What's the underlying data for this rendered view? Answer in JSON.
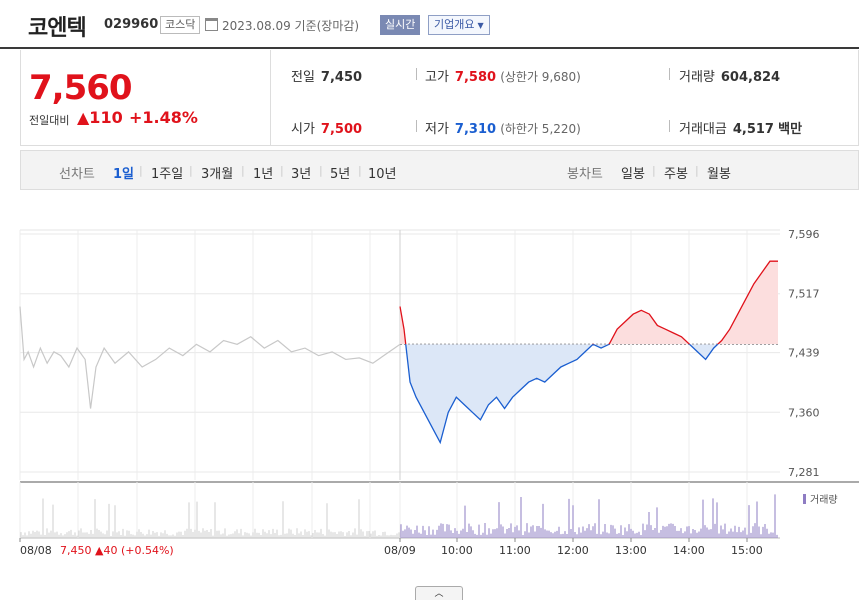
{
  "header": {
    "name": "코엔텍",
    "code": "029960",
    "market": "코스닥",
    "date": "2023.08.09",
    "basis": "기준(장마감)",
    "realtime": "실시간",
    "company_overview": "기업개요"
  },
  "price": {
    "current": "7,560",
    "change_label": "전일대비",
    "change_value": "▲110",
    "change_pct": "+1.48%"
  },
  "stats": {
    "prev_close_label": "전일",
    "prev_close": "7,450",
    "high_label": "고가",
    "high": "7,580",
    "upper_limit": "(상한가 9,680)",
    "volume_label": "거래량",
    "volume": "604,824",
    "open_label": "시가",
    "open": "7,500",
    "low_label": "저가",
    "low": "7,310",
    "lower_limit": "(하한가 5,220)",
    "amount_label": "거래대금",
    "amount": "4,517",
    "amount_unit": "백만"
  },
  "nav": {
    "line_label": "선차트",
    "periods": [
      "1일",
      "1주일",
      "3개월",
      "1년",
      "3년",
      "5년",
      "10년"
    ],
    "active_period": "1일",
    "candle_label": "봉차트",
    "candles": [
      "일봉",
      "주봉",
      "월봉"
    ]
  },
  "colors": {
    "up": "#e0121b",
    "down": "#1a5ed0",
    "prev_day": "#c8c8c8",
    "volume": "#8e7cc3"
  },
  "chart_data": {
    "type": "line",
    "y_ticks": [
      "7,596",
      "7,517",
      "7,439",
      "7,360",
      "7,281"
    ],
    "ylim": [
      7281,
      7596
    ],
    "baseline": 7450,
    "x_ticks": [
      "08/08",
      "08/09",
      "10:00",
      "11:00",
      "12:00",
      "13:00",
      "14:00",
      "15:00"
    ],
    "prev_day_info": "7,450 ▲40 (+0.54%)",
    "volume_legend": "거래량",
    "prev_day_series": [
      [
        0,
        7500
      ],
      [
        0.3,
        7430
      ],
      [
        0.6,
        7440
      ],
      [
        1,
        7420
      ],
      [
        1.5,
        7445
      ],
      [
        2,
        7425
      ],
      [
        2.5,
        7440
      ],
      [
        3,
        7435
      ],
      [
        3.6,
        7420
      ],
      [
        4.2,
        7445
      ],
      [
        4.8,
        7430
      ],
      [
        5.2,
        7365
      ],
      [
        5.6,
        7420
      ],
      [
        6.2,
        7445
      ],
      [
        7,
        7425
      ],
      [
        8,
        7440
      ],
      [
        9,
        7420
      ],
      [
        10,
        7430
      ],
      [
        11,
        7445
      ],
      [
        12,
        7435
      ],
      [
        13,
        7450
      ],
      [
        14,
        7440
      ],
      [
        15,
        7455
      ],
      [
        16,
        7450
      ],
      [
        17,
        7460
      ],
      [
        18,
        7445
      ],
      [
        19,
        7455
      ],
      [
        20,
        7440
      ],
      [
        21,
        7445
      ],
      [
        22,
        7435
      ],
      [
        23,
        7440
      ],
      [
        24,
        7430
      ],
      [
        25,
        7432
      ],
      [
        26,
        7425
      ],
      [
        26.8,
        7435
      ],
      [
        27.6,
        7445
      ],
      [
        28,
        7450
      ]
    ],
    "today_series": [
      [
        0,
        7500
      ],
      [
        0.2,
        7470
      ],
      [
        0.5,
        7400
      ],
      [
        0.8,
        7380
      ],
      [
        1.2,
        7360
      ],
      [
        1.6,
        7340
      ],
      [
        2.0,
        7320
      ],
      [
        2.4,
        7360
      ],
      [
        2.8,
        7380
      ],
      [
        3.2,
        7370
      ],
      [
        3.6,
        7360
      ],
      [
        4.0,
        7350
      ],
      [
        4.4,
        7370
      ],
      [
        4.8,
        7380
      ],
      [
        5.2,
        7365
      ],
      [
        5.6,
        7380
      ],
      [
        6.0,
        7390
      ],
      [
        6.4,
        7400
      ],
      [
        6.8,
        7405
      ],
      [
        7.2,
        7400
      ],
      [
        7.6,
        7410
      ],
      [
        8.0,
        7420
      ],
      [
        8.4,
        7425
      ],
      [
        8.8,
        7430
      ],
      [
        9.2,
        7440
      ],
      [
        9.6,
        7450
      ],
      [
        10.0,
        7445
      ],
      [
        10.4,
        7450
      ],
      [
        10.8,
        7470
      ],
      [
        11.2,
        7480
      ],
      [
        11.6,
        7490
      ],
      [
        12.0,
        7495
      ],
      [
        12.4,
        7490
      ],
      [
        12.8,
        7475
      ],
      [
        13.2,
        7470
      ],
      [
        13.6,
        7465
      ],
      [
        14.0,
        7460
      ],
      [
        14.4,
        7450
      ],
      [
        14.8,
        7440
      ],
      [
        15.2,
        7430
      ],
      [
        15.6,
        7445
      ],
      [
        16.0,
        7455
      ],
      [
        16.4,
        7470
      ],
      [
        16.8,
        7490
      ],
      [
        17.2,
        7510
      ],
      [
        17.6,
        7530
      ],
      [
        18.0,
        7545
      ],
      [
        18.4,
        7560
      ],
      [
        18.8,
        7560
      ]
    ]
  }
}
